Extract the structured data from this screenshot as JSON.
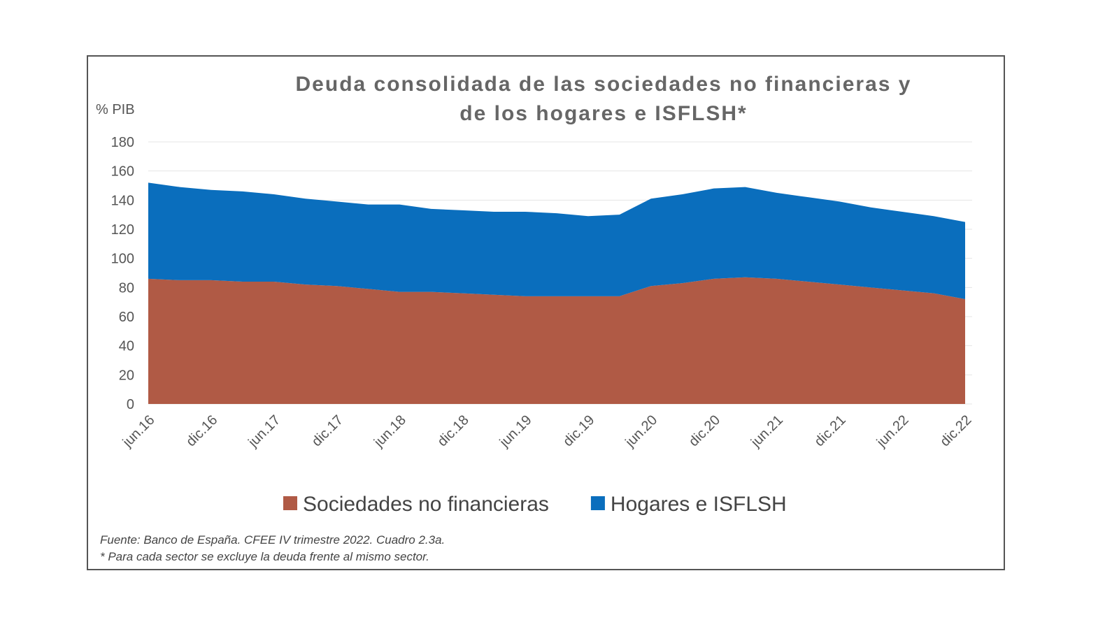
{
  "chart_data": {
    "type": "stacked_area",
    "title": [
      "Deuda consolidada de las sociedades no financieras y",
      "de los hogares e ISFLSH*"
    ],
    "y_label": "% PIB",
    "categories": [
      "jun.16",
      null,
      "dic.16",
      null,
      "jun.17",
      null,
      "dic.17",
      null,
      "jun.18",
      null,
      "dic.18",
      null,
      "jun.19",
      null,
      "dic.19",
      null,
      "jun.20",
      null,
      "dic.20",
      null,
      "jun.21",
      null,
      "dic.21",
      null,
      "jun.22",
      null,
      "dic.22"
    ],
    "series": [
      {
        "name": "Sociedades no financieras",
        "color": "#b05a45",
        "values": [
          86,
          85,
          85,
          84,
          84,
          82,
          81,
          79,
          77,
          77,
          76,
          75,
          74,
          74,
          74,
          74,
          81,
          83,
          86,
          87,
          86,
          84,
          82,
          80,
          78,
          76,
          72
        ]
      },
      {
        "name": "Hogares e ISFLSH",
        "color": "#0a6ebd",
        "values": [
          66,
          64,
          62,
          62,
          60,
          59,
          58,
          58,
          60,
          57,
          57,
          57,
          58,
          57,
          55,
          56,
          60,
          61,
          62,
          62,
          59,
          58,
          57,
          55,
          54,
          53,
          53
        ]
      }
    ],
    "ylim": [
      0,
      180
    ],
    "yticks": [
      0,
      20,
      40,
      60,
      80,
      100,
      120,
      140,
      160,
      180
    ],
    "grid": true,
    "notes": [
      "Fuente: Banco de España. CFEE IV trimestre 2022. Cuadro 2.3a.",
      "* Para cada sector se excluye la deuda frente al mismo sector."
    ]
  }
}
